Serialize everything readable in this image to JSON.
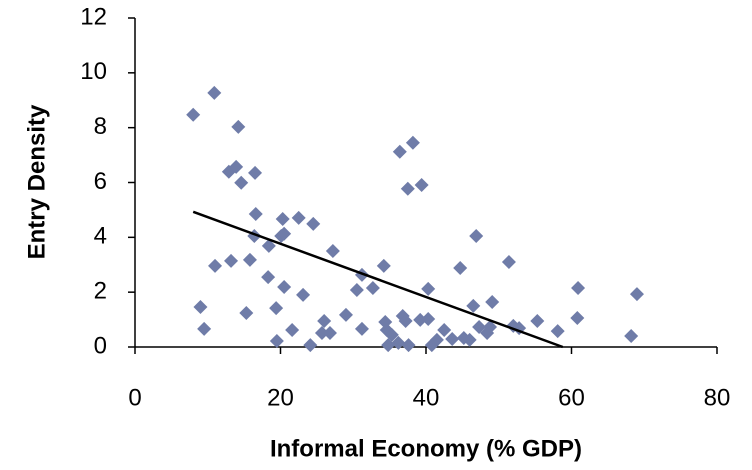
{
  "chart_data": {
    "type": "scatter",
    "x_label": "Informal Economy (% GDP)",
    "y_label": "Entry Density",
    "xlim": [
      0,
      80
    ],
    "xticks": [
      0,
      20,
      40,
      60,
      80
    ],
    "ylim": [
      0,
      12
    ],
    "yticks": [
      0,
      2,
      4,
      6,
      8,
      10,
      12
    ],
    "color": "#6f7ca8",
    "x": [
      8.0,
      10.9,
      14.2,
      12.9,
      13.9,
      14.6,
      16.5,
      36.4,
      38.2,
      37.5,
      39.4,
      16.6,
      20.3,
      22.5,
      24.5,
      16.4,
      20.1,
      20.5,
      18.4,
      27.2,
      11.0,
      13.2,
      15.8,
      18.3,
      20.5,
      23.1,
      9.0,
      9.5,
      15.3,
      19.4,
      19.5,
      21.6,
      24.1,
      26.0,
      25.7,
      26.8,
      29.0,
      30.5,
      31.2,
      32.7,
      31.2,
      34.2,
      34.4,
      34.6,
      34.8,
      35.3,
      36.2,
      36.8,
      37.2,
      37.6,
      39.2,
      40.3,
      40.3,
      40.8,
      41.5,
      42.5,
      43.6,
      44.7,
      45.2,
      46.0,
      46.5,
      46.9,
      47.3,
      48.4,
      49.1,
      48.8,
      51.4,
      52.0,
      52.8,
      55.3,
      58.1,
      60.8,
      60.9,
      68.2,
      69.0
    ],
    "values": [
      8.47,
      9.27,
      8.03,
      6.39,
      6.57,
      5.99,
      6.35,
      7.12,
      7.45,
      5.77,
      5.91,
      4.85,
      4.67,
      4.71,
      4.49,
      4.05,
      4.05,
      4.13,
      3.69,
      3.5,
      2.96,
      3.14,
      3.18,
      2.55,
      2.19,
      1.9,
      1.46,
      0.66,
      1.24,
      1.42,
      0.22,
      0.62,
      0.07,
      0.95,
      0.51,
      0.51,
      1.17,
      2.08,
      2.63,
      2.15,
      0.66,
      2.96,
      0.91,
      0.62,
      0.07,
      0.44,
      0.15,
      1.13,
      0.95,
      0.07,
      0.99,
      1.02,
      2.12,
      0.07,
      0.26,
      0.62,
      0.29,
      2.88,
      0.33,
      0.26,
      1.5,
      4.05,
      0.73,
      0.51,
      1.64,
      0.73,
      3.1,
      0.77,
      0.69,
      0.95,
      0.58,
      1.06,
      2.15,
      0.4,
      1.93
    ],
    "trendline": {
      "x": [
        8.0,
        58.8
      ],
      "y": [
        4.93,
        0
      ],
      "color": "#000000"
    }
  }
}
